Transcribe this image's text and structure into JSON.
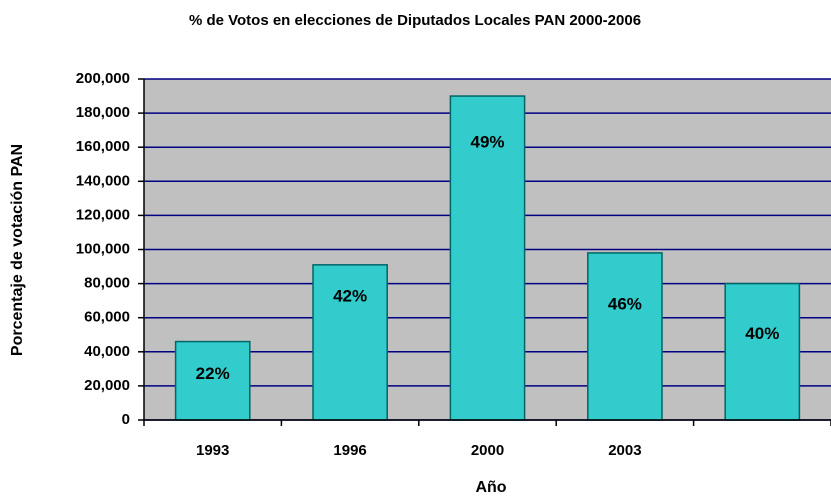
{
  "chart_data": {
    "type": "bar",
    "title": "% de Votos en elecciones de Diputados Locales PAN 2000-2006",
    "x_label": "Año",
    "y_label": "Porcentaje de votación PAN",
    "categories": [
      "1993",
      "1996",
      "2000",
      "2003",
      null
    ],
    "values": [
      46000,
      91000,
      190000,
      98000,
      80000
    ],
    "annotations": [
      "22%",
      "42%",
      "49%",
      "46%",
      "40%"
    ],
    "color": "#33cccc",
    "ylim": [
      0,
      200000
    ],
    "yticks": [
      0,
      {
        "value": 20000,
        "label": "20,000"
      },
      {
        "value": 40000,
        "label": "40,000"
      },
      {
        "value": 60000,
        "label": "60,000"
      },
      {
        "value": 80000,
        "label": "80,000"
      },
      {
        "value": 100000,
        "label": "100,000"
      },
      {
        "value": 120000,
        "label": "120,000"
      },
      {
        "value": 140000,
        "label": "140,000"
      },
      {
        "value": 160000,
        "label": "160,000"
      },
      {
        "value": 180000,
        "label": "180,000"
      },
      {
        "value": 200000,
        "label": "200,000"
      }
    ],
    "grid": true
  }
}
